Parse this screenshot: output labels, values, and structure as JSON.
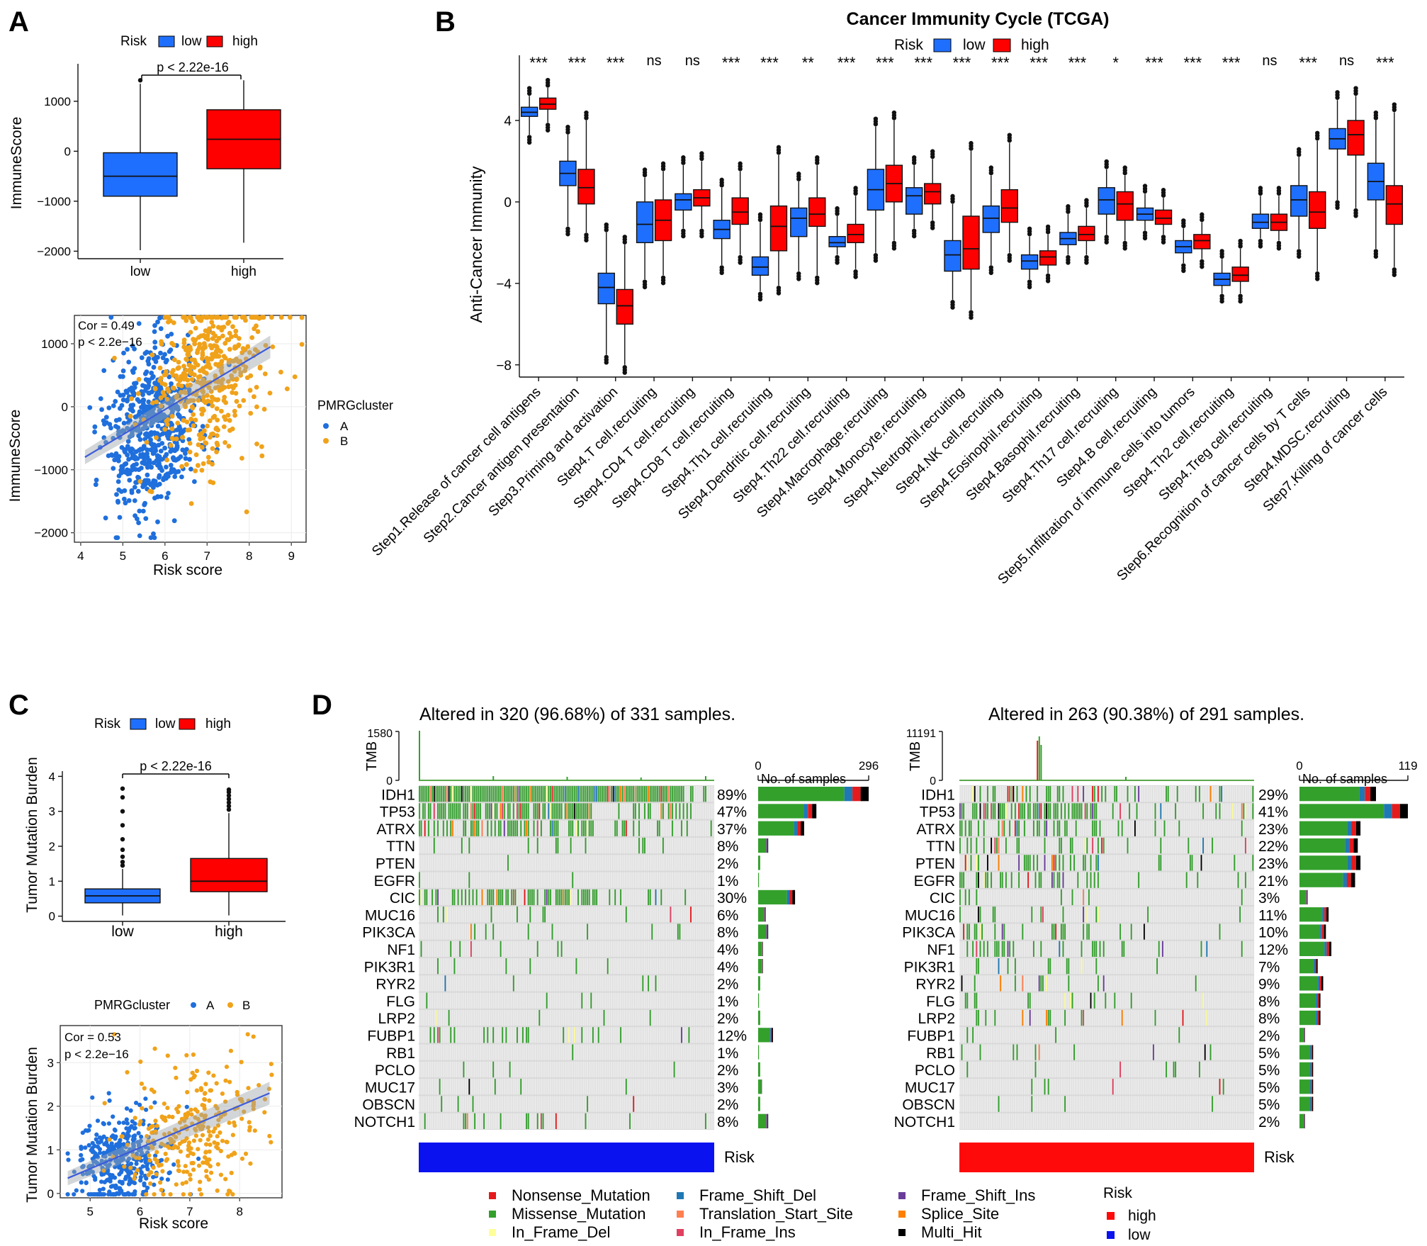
{
  "chart_data": [
    {
      "panel": "A-box",
      "type": "box",
      "panel_letter": "A",
      "legend": {
        "title": "Risk",
        "items": [
          "low",
          "high"
        ]
      },
      "colors": {
        "low": "#1f6fff",
        "high": "#ff0000"
      },
      "pvalue": "p < 2.22e-16",
      "ylabel": "ImmuneScore",
      "ylim": [
        -2150,
        1750
      ],
      "yticks": [
        1000,
        0,
        -1000,
        -2000
      ],
      "yticklabels": [
        "1000",
        "0",
        "−1000",
        "−2000"
      ],
      "categories": [
        "low",
        "high"
      ],
      "boxes": [
        {
          "q1": -900,
          "median": -500,
          "q3": -30,
          "lo": -1980,
          "hi": 1350,
          "outliers": [
            1420
          ]
        },
        {
          "q1": -350,
          "median": 240,
          "q3": 830,
          "lo": -1830,
          "hi": 1420,
          "outliers": []
        }
      ]
    },
    {
      "panel": "A-scatter",
      "type": "scatter",
      "title_text": [
        "Cor = 0.49",
        "p < 2.2e−16"
      ],
      "xlabel": "Risk score",
      "ylabel": "ImmuneScore",
      "xlim": [
        3.85,
        9.35
      ],
      "ylim": [
        -2150,
        1450
      ],
      "xticks": [
        4,
        5,
        6,
        7,
        8,
        9
      ],
      "yticks": [
        1000,
        0,
        -1000,
        -2000
      ],
      "yticklabels": [
        "1000",
        "0",
        "−1000",
        "−2000"
      ],
      "legend": {
        "title": "PMRGcluster",
        "items": [
          "A",
          "B"
        ]
      },
      "colors": {
        "A": "#1f6fdc",
        "B": "#f0a21a"
      },
      "fit": {
        "x0": 4.1,
        "y0": -800,
        "x1": 8.5,
        "y1": 950
      },
      "cloud": {
        "A": {
          "n": 620,
          "mx": 5.7,
          "sx": 0.55,
          "my": -350,
          "sy": 650
        },
        "B": {
          "n": 460,
          "mx": 7.0,
          "sx": 0.7,
          "my": 500,
          "sy": 650
        }
      }
    },
    {
      "panel": "B",
      "type": "box",
      "panel_letter": "B",
      "title": "Cancer Immunity Cycle (TCGA)",
      "legend": {
        "title": "Risk",
        "items": [
          "low",
          "high"
        ]
      },
      "colors": {
        "low": "#1f6fff",
        "high": "#ff0000"
      },
      "ylabel": "Anti-Cancer Immunity",
      "ylim": [
        -8.6,
        7.2
      ],
      "yticks": [
        4,
        0,
        -4,
        -8
      ],
      "yticklabels": [
        "4",
        "0",
        "−4",
        "−8"
      ],
      "categories": [
        "Step1.Release of cancer cell antigens",
        "Step2.Cancer antigen presentation",
        "Step3.Priming and activation",
        "Step4.T cell.recruiting",
        "Step4.CD4 T cell.recruiting",
        "Step4.CD8 T cell.recruiting",
        "Step4.Th1 cell.recruiting",
        "Step4.Dendritic cell.recruiting",
        "Step4.Th22 cell.recruiting",
        "Step4.Macrophage.recruiting",
        "Step4.Monocyte.recruiting",
        "Step4.Neutrophil.recruiting",
        "Step4.NK cell.recruiting",
        "Step4.Eosinophil.recruiting",
        "Step4.Basophil.recruiting",
        "Step4.Th17 cell.recruiting",
        "Step4.B cell.recruiting",
        "Step5.Infiltration of immune cells into tumors",
        "Step4.Th2 cell.recruiting",
        "Step4.Treg cell.recruiting",
        "Step6.Recognition of cancer cells by T cells",
        "Step4.MDSC.recruiting",
        "Step7.Killing of cancer cells"
      ],
      "significance": [
        "***",
        "***",
        "***",
        "ns",
        "ns",
        "***",
        "***",
        "**",
        "***",
        "***",
        "***",
        "***",
        "***",
        "***",
        "***",
        "*",
        "***",
        "***",
        "***",
        "ns",
        "***",
        "ns",
        "***"
      ],
      "low": [
        {
          "q1": 4.2,
          "median": 4.4,
          "q3": 4.65,
          "lo": 3.3,
          "hi": 5.2
        },
        {
          "q1": 0.8,
          "median": 1.4,
          "q3": 2.0,
          "lo": -1.2,
          "hi": 3.3
        },
        {
          "q1": -5.0,
          "median": -4.2,
          "q3": -3.5,
          "lo": -7.5,
          "hi": -1.5
        },
        {
          "q1": -2.0,
          "median": -1.1,
          "q3": 0.0,
          "lo": -3.8,
          "hi": 1.2
        },
        {
          "q1": -0.4,
          "median": 0.1,
          "q3": 0.4,
          "lo": -1.3,
          "hi": 1.8
        },
        {
          "q1": -1.8,
          "median": -1.35,
          "q3": -0.9,
          "lo": -3.1,
          "hi": 0.7
        },
        {
          "q1": -3.6,
          "median": -3.2,
          "q3": -2.7,
          "lo": -4.4,
          "hi": -1.0
        },
        {
          "q1": -1.7,
          "median": -0.8,
          "q3": -0.3,
          "lo": -3.4,
          "hi": 1.0
        },
        {
          "q1": -2.2,
          "median": -2.0,
          "q3": -1.7,
          "lo": -2.6,
          "hi": -0.7
        },
        {
          "q1": -0.4,
          "median": 0.6,
          "q3": 1.6,
          "lo": -2.5,
          "hi": 3.7
        },
        {
          "q1": -0.6,
          "median": 0.3,
          "q3": 0.7,
          "lo": -1.3,
          "hi": 1.8
        },
        {
          "q1": -3.4,
          "median": -2.6,
          "q3": -1.9,
          "lo": -4.8,
          "hi": -0.1
        },
        {
          "q1": -1.5,
          "median": -0.8,
          "q3": -0.2,
          "lo": -3.1,
          "hi": 1.3
        },
        {
          "q1": -3.3,
          "median": -2.9,
          "q3": -2.6,
          "lo": -3.8,
          "hi": -1.7
        },
        {
          "q1": -2.1,
          "median": -1.8,
          "q3": -1.5,
          "lo": -2.6,
          "hi": -0.6
        },
        {
          "q1": -0.6,
          "median": 0.1,
          "q3": 0.7,
          "lo": -1.6,
          "hi": 1.6
        },
        {
          "q1": -0.9,
          "median": -0.6,
          "q3": -0.3,
          "lo": -1.4,
          "hi": 0.4
        },
        {
          "q1": -2.5,
          "median": -2.2,
          "q3": -1.9,
          "lo": -3.0,
          "hi": -1.3
        },
        {
          "q1": -4.1,
          "median": -3.8,
          "q3": -3.5,
          "lo": -4.5,
          "hi": -2.8
        },
        {
          "q1": -1.3,
          "median": -1.0,
          "q3": -0.6,
          "lo": -1.8,
          "hi": 0.3
        },
        {
          "q1": -0.7,
          "median": 0.1,
          "q3": 0.8,
          "lo": -2.3,
          "hi": 2.2
        },
        {
          "q1": 2.6,
          "median": 3.1,
          "q3": 3.6,
          "lo": 0.1,
          "hi": 5.0
        },
        {
          "q1": 0.1,
          "median": 1.0,
          "q3": 1.9,
          "lo": -2.3,
          "hi": 4.0
        }
      ],
      "high": [
        {
          "q1": 4.55,
          "median": 4.8,
          "q3": 5.1,
          "lo": 3.9,
          "hi": 5.6
        },
        {
          "q1": -0.1,
          "median": 0.7,
          "q3": 1.6,
          "lo": -1.5,
          "hi": 4.0
        },
        {
          "q1": -6.0,
          "median": -5.1,
          "q3": -4.3,
          "lo": -8.0,
          "hi": -2.1
        },
        {
          "q1": -1.9,
          "median": -0.9,
          "q3": 0.1,
          "lo": -3.6,
          "hi": 1.5
        },
        {
          "q1": -0.2,
          "median": 0.2,
          "q3": 0.6,
          "lo": -1.3,
          "hi": 2.0
        },
        {
          "q1": -1.1,
          "median": -0.5,
          "q3": 0.2,
          "lo": -2.6,
          "hi": 1.5
        },
        {
          "q1": -2.4,
          "median": -1.2,
          "q3": -0.2,
          "lo": -4.1,
          "hi": 2.3
        },
        {
          "q1": -1.2,
          "median": -0.6,
          "q3": 0.2,
          "lo": -3.6,
          "hi": 1.8
        },
        {
          "q1": -2.0,
          "median": -1.6,
          "q3": -1.1,
          "lo": -3.3,
          "hi": 0.3
        },
        {
          "q1": 0.0,
          "median": 0.9,
          "q3": 1.8,
          "lo": -1.9,
          "hi": 4.0
        },
        {
          "q1": -0.1,
          "median": 0.5,
          "q3": 0.9,
          "lo": -0.9,
          "hi": 2.1
        },
        {
          "q1": -3.3,
          "median": -2.3,
          "q3": -0.7,
          "lo": -5.3,
          "hi": 2.5
        },
        {
          "q1": -1.0,
          "median": -0.3,
          "q3": 0.6,
          "lo": -2.5,
          "hi": 2.9
        },
        {
          "q1": -3.1,
          "median": -2.7,
          "q3": -2.4,
          "lo": -3.5,
          "hi": -1.6
        },
        {
          "q1": -1.9,
          "median": -1.6,
          "q3": -1.2,
          "lo": -2.6,
          "hi": -0.3
        },
        {
          "q1": -0.9,
          "median": -0.1,
          "q3": 0.5,
          "lo": -1.9,
          "hi": 1.3
        },
        {
          "q1": -1.1,
          "median": -0.8,
          "q3": -0.4,
          "lo": -1.6,
          "hi": 0.2
        },
        {
          "q1": -2.3,
          "median": -1.9,
          "q3": -1.6,
          "lo": -2.8,
          "hi": -1.0
        },
        {
          "q1": -3.9,
          "median": -3.6,
          "q3": -3.2,
          "lo": -4.5,
          "hi": -2.3
        },
        {
          "q1": -1.4,
          "median": -1.0,
          "q3": -0.6,
          "lo": -1.9,
          "hi": 0.3
        },
        {
          "q1": -1.3,
          "median": -0.5,
          "q3": 0.5,
          "lo": -3.4,
          "hi": 3.0
        },
        {
          "q1": 2.3,
          "median": 3.3,
          "q3": 4.0,
          "lo": -0.3,
          "hi": 5.2
        },
        {
          "q1": -1.1,
          "median": -0.1,
          "q3": 0.8,
          "lo": -3.2,
          "hi": 4.4
        }
      ]
    },
    {
      "panel": "C-box",
      "type": "box",
      "panel_letter": "C",
      "legend": {
        "title": "Risk",
        "items": [
          "low",
          "high"
        ]
      },
      "colors": {
        "low": "#1f6fff",
        "high": "#ff0000"
      },
      "pvalue": "p < 2.22e-16",
      "ylabel": "Tumor Mutation Burden",
      "ylim": [
        -0.15,
        4.15
      ],
      "yticks": [
        0,
        1,
        2,
        3,
        4
      ],
      "categories": [
        "low",
        "high"
      ],
      "boxes": [
        {
          "q1": 0.38,
          "median": 0.58,
          "q3": 0.78,
          "lo": 0.02,
          "hi": 1.35,
          "outliers": [
            1.45,
            1.55,
            1.7,
            1.9,
            2.2,
            2.6,
            3.0,
            3.4,
            3.65
          ]
        },
        {
          "q1": 0.7,
          "median": 1.0,
          "q3": 1.65,
          "lo": 0.02,
          "hi": 2.95,
          "outliers": [
            3.05,
            3.15,
            3.25,
            3.35,
            3.45,
            3.55,
            3.62
          ]
        }
      ]
    },
    {
      "panel": "C-scatter",
      "type": "scatter",
      "title_text": [
        "Cor = 0.53",
        "p < 2.2e−16"
      ],
      "xlabel": "Risk score",
      "ylabel": "Tumor Mutation Burden",
      "xlim": [
        4.4,
        8.85
      ],
      "ylim": [
        -0.1,
        3.85
      ],
      "xticks": [
        5,
        6,
        7,
        8
      ],
      "yticks": [
        0,
        1,
        2,
        3
      ],
      "legend": {
        "title": "PMRGcluster",
        "items": [
          "A",
          "B"
        ]
      },
      "colors": {
        "A": "#1f6fdc",
        "B": "#f0a21a"
      },
      "fit": {
        "x0": 4.55,
        "y0": 0.35,
        "x1": 8.6,
        "y1": 2.3
      },
      "cloud": {
        "A": {
          "n": 380,
          "mx": 5.6,
          "sx": 0.45,
          "my": 0.7,
          "sy": 0.55
        },
        "B": {
          "n": 300,
          "mx": 7.0,
          "sx": 0.65,
          "my": 1.4,
          "sy": 0.8
        }
      }
    },
    {
      "panel": "D",
      "type": "oncoplot",
      "panel_letter": "D",
      "genes": [
        "IDH1",
        "TP53",
        "ATRX",
        "TTN",
        "PTEN",
        "EGFR",
        "CIC",
        "MUC16",
        "PIK3CA",
        "NF1",
        "PIK3R1",
        "RYR2",
        "FLG",
        "LRP2",
        "FUBP1",
        "RB1",
        "PCLO",
        "MUC17",
        "OBSCN",
        "NOTCH1"
      ],
      "left": {
        "title": "Altered in 320 (96.68%) of 331 samples.",
        "tmb_label": "TMB",
        "tmb_max": "1580",
        "tmb_min": "0",
        "axis_max": 296,
        "axis_min_label": "0",
        "axis_max_label": "296",
        "axis_title": "No. of samples",
        "percents": [
          "89%",
          "47%",
          "37%",
          "8%",
          "2%",
          "1%",
          "30%",
          "6%",
          "8%",
          "4%",
          "4%",
          "2%",
          "1%",
          "2%",
          "12%",
          "1%",
          "2%",
          "3%",
          "2%",
          "8%"
        ],
        "counts": [
          296,
          156,
          123,
          27,
          7,
          3,
          99,
          20,
          27,
          13,
          13,
          7,
          3,
          7,
          40,
          3,
          7,
          10,
          7,
          27
        ],
        "risk_label": "Risk",
        "risk_color": "#0a12f0"
      },
      "right": {
        "title": "Altered in 263 (90.38%) of 291 samples.",
        "tmb_label": "TMB",
        "tmb_max": "11191",
        "tmb_min": "0",
        "axis_max": 119,
        "axis_min_label": "0",
        "axis_max_label": "119",
        "axis_title": "No. of samples",
        "percents": [
          "29%",
          "41%",
          "23%",
          "22%",
          "23%",
          "21%",
          "3%",
          "11%",
          "10%",
          "12%",
          "7%",
          "9%",
          "8%",
          "8%",
          "2%",
          "5%",
          "5%",
          "5%",
          "5%",
          "2%"
        ],
        "counts": [
          84,
          119,
          67,
          64,
          67,
          61,
          9,
          32,
          29,
          35,
          20,
          26,
          23,
          23,
          6,
          15,
          15,
          15,
          15,
          6
        ],
        "risk_label": "Risk",
        "risk_color": "#ff0a0a"
      },
      "legend": {
        "mutations": [
          "Nonsense_Mutation",
          "Missense_Mutation",
          "In_Frame_Del",
          "Frame_Shift_Del",
          "Translation_Start_Site",
          "In_Frame_Ins",
          "Frame_Shift_Ins",
          "Splice_Site",
          "Multi_Hit"
        ],
        "mutation_colors": [
          "#e41a1c",
          "#33a02c",
          "#ffff99",
          "#1f78b4",
          "#ff7f50",
          "#e04060",
          "#6a3d9a",
          "#ff7f00",
          "#000000"
        ],
        "risk_title": "Risk",
        "risk_items": [
          "high",
          "low"
        ],
        "risk_colors": [
          "#ff0a0a",
          "#0a12f0"
        ]
      }
    }
  ]
}
